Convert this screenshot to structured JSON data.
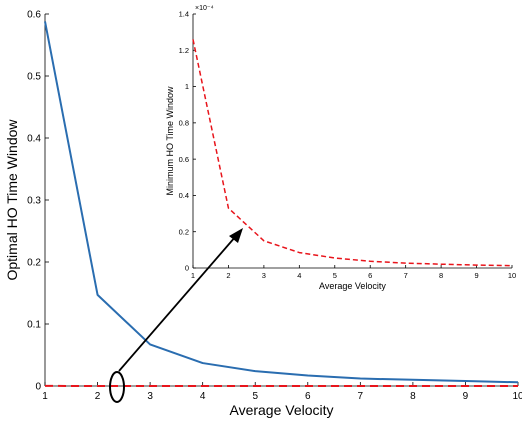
{
  "chart_data": [
    {
      "type": "line",
      "xlabel": "Average Velocity",
      "ylabel": "Optimal HO Time Window",
      "xlim": [
        1,
        10
      ],
      "ylim": [
        0,
        0.6
      ],
      "xticks": [
        1,
        2,
        3,
        4,
        5,
        6,
        7,
        8,
        9,
        10
      ],
      "yticks": [
        0,
        0.1,
        0.2,
        0.3,
        0.4,
        0.5,
        0.6
      ],
      "series": [
        {
          "style": "solid",
          "color": "#2a6db0",
          "x": [
            1,
            2,
            3,
            4,
            5,
            6,
            7,
            8,
            9,
            10
          ],
          "values": [
            0.588,
            0.147,
            0.067,
            0.037,
            0.024,
            0.017,
            0.012,
            0.01,
            0.008,
            0.006
          ]
        },
        {
          "style": "dashed",
          "color": "#e8141b",
          "x": [
            1,
            2,
            3,
            4,
            5,
            6,
            7,
            8,
            9,
            10
          ],
          "values": [
            0.000126,
            3.3e-05,
            1.5e-05,
            8.5e-06,
            5.5e-06,
            3.7e-06,
            2.7e-06,
            2.1e-06,
            1.6e-06,
            1.3e-06
          ]
        }
      ]
    },
    {
      "type": "line",
      "xlabel": "Average Velocity",
      "ylabel": "Minimum HO Time Window",
      "exponent_label": "×10⁻⁴",
      "xlim": [
        1,
        10
      ],
      "ylim": [
        0,
        1.4
      ],
      "xticks": [
        1,
        2,
        3,
        4,
        5,
        6,
        7,
        8,
        9,
        10
      ],
      "yticks": [
        0,
        0.2,
        0.4,
        0.6,
        0.8,
        1,
        1.2,
        1.4
      ],
      "series": [
        {
          "style": "dashed",
          "color": "#e8141b",
          "x": [
            1,
            2,
            3,
            4,
            5,
            6,
            7,
            8,
            9,
            10
          ],
          "values": [
            1.26,
            0.33,
            0.15,
            0.085,
            0.055,
            0.037,
            0.027,
            0.021,
            0.016,
            0.013
          ]
        }
      ]
    }
  ],
  "colors": {
    "arrow": "#000000",
    "axis": "#000000"
  }
}
